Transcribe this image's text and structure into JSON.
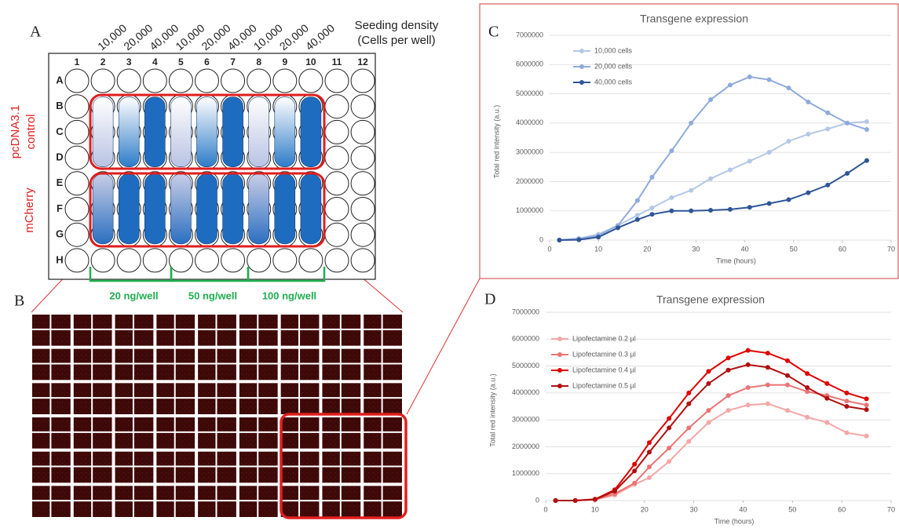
{
  "plate": {
    "panel_label": "A",
    "seeding_title": "Seeding density",
    "seeding_subtitle": "(Cells per well)",
    "seeding_density": [
      "10,000",
      "20,000",
      "40,000",
      "10,000",
      "20,000",
      "40,000",
      "10,000",
      "20,000",
      "40,000"
    ],
    "columns": [
      1,
      2,
      3,
      4,
      5,
      6,
      7,
      8,
      9,
      10,
      11,
      12
    ],
    "rows": [
      "A",
      "B",
      "C",
      "D",
      "E",
      "F",
      "G",
      "H"
    ],
    "groups": [
      [
        "pcDNA3.1",
        "control"
      ],
      [
        "mCherry"
      ]
    ],
    "doses": [
      "20 ng/well",
      "50 ng/well",
      "100 ng/well"
    ]
  },
  "image_panel": {
    "panel_label": "B"
  },
  "chart_panels": {
    "labels": [
      "C",
      "D"
    ]
  },
  "chart_data": [
    {
      "type": "line",
      "title": "Transgene expression",
      "x_label": "Time (hours)",
      "y_label": "Total red intensity (a.u.)",
      "x": [
        2,
        6,
        10,
        14,
        18,
        21,
        25,
        29,
        33,
        37,
        41,
        45,
        49,
        53,
        57,
        61,
        65
      ],
      "xlim": [
        0,
        70
      ],
      "xticks": [
        0,
        10,
        20,
        30,
        40,
        50,
        60,
        70
      ],
      "ylim": [
        0,
        7000000
      ],
      "yticks": [
        0,
        1000000,
        2000000,
        3000000,
        4000000,
        5000000,
        6000000,
        7000000
      ],
      "grid": true,
      "legend": "upper left",
      "series": [
        {
          "name": "10,000 cells",
          "color": "#b4c7e7",
          "values": [
            0,
            50000,
            200000,
            500000,
            850000,
            1100000,
            1450000,
            1700000,
            2100000,
            2400000,
            2700000,
            3000000,
            3380000,
            3620000,
            3800000,
            4000000,
            4050000
          ]
        },
        {
          "name": "20,000 cells",
          "color": "#8faadc",
          "values": [
            0,
            50000,
            150000,
            500000,
            1350000,
            2150000,
            3050000,
            4000000,
            4800000,
            5300000,
            5580000,
            5480000,
            5200000,
            4720000,
            4350000,
            4000000,
            3780000
          ]
        },
        {
          "name": "40,000 cells",
          "color": "#2f5597",
          "values": [
            0,
            10000,
            100000,
            420000,
            700000,
            880000,
            1000000,
            1000000,
            1020000,
            1050000,
            1120000,
            1250000,
            1380000,
            1620000,
            1880000,
            2280000,
            2720000
          ]
        }
      ]
    },
    {
      "type": "line",
      "title": "Transgene expression",
      "x_label": "Time (hours)",
      "y_label": "Total red intensity (a.u.)",
      "x": [
        2,
        6,
        10,
        14,
        18,
        21,
        25,
        29,
        33,
        37,
        41,
        45,
        49,
        53,
        57,
        61,
        65
      ],
      "xlim": [
        0,
        70
      ],
      "xticks": [
        0,
        10,
        20,
        30,
        40,
        50,
        60,
        70
      ],
      "ylim": [
        0,
        7000000
      ],
      "yticks": [
        0,
        1000000,
        2000000,
        3000000,
        4000000,
        5000000,
        6000000,
        7000000
      ],
      "grid": true,
      "legend": "upper left",
      "series": [
        {
          "name": "Lipofectamine 0.2 µl",
          "color": "#f4a6a6",
          "values": [
            0,
            0,
            30000,
            200000,
            600000,
            850000,
            1450000,
            2200000,
            2900000,
            3350000,
            3550000,
            3600000,
            3350000,
            3100000,
            2900000,
            2520000,
            2400000
          ]
        },
        {
          "name": "Lipofectamine 0.3 µl",
          "color": "#e97474",
          "values": [
            0,
            0,
            40000,
            250000,
            650000,
            1250000,
            1950000,
            2700000,
            3350000,
            3900000,
            4200000,
            4300000,
            4300000,
            4050000,
            3900000,
            3700000,
            3550000
          ]
        },
        {
          "name": "Lipofectamine 0.4 µl",
          "color": "#e00000",
          "values": [
            0,
            0,
            50000,
            400000,
            1350000,
            2150000,
            3050000,
            4000000,
            4800000,
            5300000,
            5580000,
            5480000,
            5200000,
            4720000,
            4350000,
            4000000,
            3780000
          ]
        },
        {
          "name": "Lipofectamine 0.5 µl",
          "color": "#b01010",
          "values": [
            0,
            0,
            40000,
            350000,
            1100000,
            1800000,
            2700000,
            3600000,
            4350000,
            4850000,
            5050000,
            4950000,
            4650000,
            4200000,
            3800000,
            3500000,
            3380000
          ]
        }
      ]
    }
  ]
}
